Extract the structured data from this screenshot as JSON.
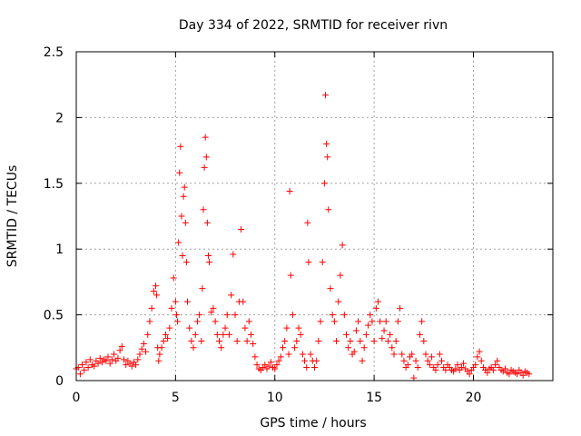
{
  "chart_data": {
    "type": "scatter",
    "title": "Day 334 of 2022, SRMTID for receiver rivn",
    "xlabel": "GPS time / hours",
    "ylabel": "SRMTID / TECUs",
    "xlim": [
      0,
      24
    ],
    "ylim": [
      0,
      2.5
    ],
    "grid": true,
    "marker": "+",
    "color": "#ff0000",
    "xticks": [
      0,
      5,
      10,
      15,
      20
    ],
    "xtick_labels": [
      "0",
      "5",
      "10",
      "15",
      "20"
    ],
    "yticks": [
      0,
      0.5,
      1,
      1.5,
      2,
      2.5
    ],
    "ytick_labels": [
      "0",
      "0.5",
      "1",
      "1.5",
      "2",
      "2.5"
    ],
    "series": [
      {
        "name": "SRMTID",
        "points": [
          [
            0.0,
            0.09
          ],
          [
            0.1,
            0.1
          ],
          [
            0.2,
            0.05
          ],
          [
            0.3,
            0.12
          ],
          [
            0.4,
            0.08
          ],
          [
            0.5,
            0.14
          ],
          [
            0.6,
            0.1
          ],
          [
            0.7,
            0.16
          ],
          [
            0.8,
            0.12
          ],
          [
            0.9,
            0.11
          ],
          [
            1.0,
            0.15
          ],
          [
            1.1,
            0.13
          ],
          [
            1.2,
            0.17
          ],
          [
            1.3,
            0.14
          ],
          [
            1.4,
            0.16
          ],
          [
            1.5,
            0.15
          ],
          [
            1.6,
            0.18
          ],
          [
            1.7,
            0.13
          ],
          [
            1.8,
            0.16
          ],
          [
            1.9,
            0.2
          ],
          [
            2.0,
            0.15
          ],
          [
            2.1,
            0.17
          ],
          [
            2.2,
            0.23
          ],
          [
            2.3,
            0.26
          ],
          [
            2.4,
            0.16
          ],
          [
            2.5,
            0.12
          ],
          [
            2.6,
            0.15
          ],
          [
            2.7,
            0.13
          ],
          [
            2.8,
            0.11
          ],
          [
            2.9,
            0.14
          ],
          [
            3.0,
            0.12
          ],
          [
            3.1,
            0.16
          ],
          [
            3.2,
            0.2
          ],
          [
            3.3,
            0.24
          ],
          [
            3.4,
            0.28
          ],
          [
            3.5,
            0.22
          ],
          [
            3.6,
            0.35
          ],
          [
            3.7,
            0.45
          ],
          [
            3.8,
            0.55
          ],
          [
            3.9,
            0.68
          ],
          [
            4.0,
            0.72
          ],
          [
            4.05,
            0.65
          ],
          [
            4.1,
            0.25
          ],
          [
            4.15,
            0.15
          ],
          [
            4.2,
            0.2
          ],
          [
            4.3,
            0.25
          ],
          [
            4.4,
            0.3
          ],
          [
            4.5,
            0.35
          ],
          [
            4.6,
            0.32
          ],
          [
            4.7,
            0.4
          ],
          [
            4.8,
            0.55
          ],
          [
            4.9,
            0.78
          ],
          [
            5.0,
            0.6
          ],
          [
            5.05,
            0.5
          ],
          [
            5.1,
            0.45
          ],
          [
            5.15,
            1.05
          ],
          [
            5.2,
            1.58
          ],
          [
            5.25,
            1.78
          ],
          [
            5.3,
            1.25
          ],
          [
            5.35,
            0.95
          ],
          [
            5.4,
            1.4
          ],
          [
            5.45,
            1.47
          ],
          [
            5.5,
            1.2
          ],
          [
            5.55,
            0.9
          ],
          [
            5.6,
            0.6
          ],
          [
            5.7,
            0.4
          ],
          [
            5.8,
            0.3
          ],
          [
            5.9,
            0.25
          ],
          [
            6.0,
            0.35
          ],
          [
            6.1,
            0.45
          ],
          [
            6.2,
            0.5
          ],
          [
            6.3,
            0.3
          ],
          [
            6.35,
            0.7
          ],
          [
            6.4,
            1.3
          ],
          [
            6.45,
            1.62
          ],
          [
            6.5,
            1.85
          ],
          [
            6.55,
            1.7
          ],
          [
            6.6,
            1.2
          ],
          [
            6.65,
            0.95
          ],
          [
            6.7,
            0.9
          ],
          [
            6.8,
            0.52
          ],
          [
            6.9,
            0.55
          ],
          [
            7.0,
            0.45
          ],
          [
            7.1,
            0.35
          ],
          [
            7.2,
            0.3
          ],
          [
            7.3,
            0.25
          ],
          [
            7.4,
            0.35
          ],
          [
            7.5,
            0.4
          ],
          [
            7.6,
            0.5
          ],
          [
            7.7,
            0.35
          ],
          [
            7.8,
            0.65
          ],
          [
            7.9,
            0.96
          ],
          [
            8.0,
            0.5
          ],
          [
            8.1,
            0.3
          ],
          [
            8.2,
            0.6
          ],
          [
            8.3,
            1.15
          ],
          [
            8.4,
            0.6
          ],
          [
            8.5,
            0.4
          ],
          [
            8.6,
            0.3
          ],
          [
            8.7,
            0.45
          ],
          [
            8.8,
            0.35
          ],
          [
            8.9,
            0.28
          ],
          [
            9.0,
            0.18
          ],
          [
            9.1,
            0.12
          ],
          [
            9.2,
            0.09
          ],
          [
            9.3,
            0.08
          ],
          [
            9.4,
            0.1
          ],
          [
            9.5,
            0.12
          ],
          [
            9.6,
            0.09
          ],
          [
            9.7,
            0.11
          ],
          [
            9.8,
            0.14
          ],
          [
            9.9,
            0.1
          ],
          [
            10.0,
            0.09
          ],
          [
            10.1,
            0.12
          ],
          [
            10.2,
            0.15
          ],
          [
            10.3,
            0.18
          ],
          [
            10.4,
            0.25
          ],
          [
            10.5,
            0.3
          ],
          [
            10.6,
            0.4
          ],
          [
            10.7,
            0.2
          ],
          [
            10.75,
            1.44
          ],
          [
            10.8,
            0.8
          ],
          [
            10.9,
            0.5
          ],
          [
            11.0,
            0.25
          ],
          [
            11.1,
            0.3
          ],
          [
            11.2,
            0.4
          ],
          [
            11.3,
            0.35
          ],
          [
            11.4,
            0.2
          ],
          [
            11.5,
            0.15
          ],
          [
            11.6,
            0.1
          ],
          [
            11.65,
            1.2
          ],
          [
            11.7,
            0.9
          ],
          [
            11.8,
            0.2
          ],
          [
            11.9,
            0.15
          ],
          [
            12.0,
            0.1
          ],
          [
            12.1,
            0.15
          ],
          [
            12.2,
            0.3
          ],
          [
            12.3,
            0.45
          ],
          [
            12.4,
            0.9
          ],
          [
            12.5,
            1.5
          ],
          [
            12.55,
            2.17
          ],
          [
            12.6,
            1.8
          ],
          [
            12.65,
            1.7
          ],
          [
            12.7,
            1.3
          ],
          [
            12.8,
            0.7
          ],
          [
            12.9,
            0.5
          ],
          [
            13.0,
            0.45
          ],
          [
            13.1,
            0.3
          ],
          [
            13.2,
            0.6
          ],
          [
            13.3,
            0.8
          ],
          [
            13.4,
            1.03
          ],
          [
            13.5,
            0.5
          ],
          [
            13.6,
            0.35
          ],
          [
            13.7,
            0.25
          ],
          [
            13.8,
            0.3
          ],
          [
            13.9,
            0.2
          ],
          [
            14.0,
            0.22
          ],
          [
            14.1,
            0.38
          ],
          [
            14.2,
            0.45
          ],
          [
            14.3,
            0.3
          ],
          [
            14.4,
            0.15
          ],
          [
            14.5,
            0.25
          ],
          [
            14.6,
            0.35
          ],
          [
            14.7,
            0.42
          ],
          [
            14.8,
            0.5
          ],
          [
            14.9,
            0.45
          ],
          [
            15.0,
            0.3
          ],
          [
            15.1,
            0.55
          ],
          [
            15.2,
            0.6
          ],
          [
            15.3,
            0.45
          ],
          [
            15.4,
            0.32
          ],
          [
            15.5,
            0.38
          ],
          [
            15.6,
            0.45
          ],
          [
            15.7,
            0.3
          ],
          [
            15.8,
            0.35
          ],
          [
            15.9,
            0.25
          ],
          [
            16.0,
            0.2
          ],
          [
            16.1,
            0.3
          ],
          [
            16.2,
            0.45
          ],
          [
            16.3,
            0.55
          ],
          [
            16.4,
            0.2
          ],
          [
            16.5,
            0.15
          ],
          [
            16.6,
            0.1
          ],
          [
            16.7,
            0.12
          ],
          [
            16.8,
            0.18
          ],
          [
            16.9,
            0.2
          ],
          [
            17.0,
            0.02
          ],
          [
            17.1,
            0.15
          ],
          [
            17.2,
            0.1
          ],
          [
            17.3,
            0.35
          ],
          [
            17.4,
            0.45
          ],
          [
            17.5,
            0.3
          ],
          [
            17.6,
            0.2
          ],
          [
            17.7,
            0.15
          ],
          [
            17.8,
            0.12
          ],
          [
            17.9,
            0.18
          ],
          [
            18.0,
            0.1
          ],
          [
            18.1,
            0.08
          ],
          [
            18.2,
            0.12
          ],
          [
            18.3,
            0.2
          ],
          [
            18.4,
            0.15
          ],
          [
            18.5,
            0.1
          ],
          [
            18.6,
            0.08
          ],
          [
            18.7,
            0.12
          ],
          [
            18.8,
            0.1
          ],
          [
            18.9,
            0.08
          ],
          [
            19.0,
            0.07
          ],
          [
            19.1,
            0.09
          ],
          [
            19.2,
            0.12
          ],
          [
            19.3,
            0.08
          ],
          [
            19.4,
            0.1
          ],
          [
            19.5,
            0.13
          ],
          [
            19.6,
            0.09
          ],
          [
            19.7,
            0.07
          ],
          [
            19.8,
            0.05
          ],
          [
            19.9,
            0.08
          ],
          [
            20.0,
            0.1
          ],
          [
            20.1,
            0.12
          ],
          [
            20.2,
            0.18
          ],
          [
            20.3,
            0.22
          ],
          [
            20.4,
            0.15
          ],
          [
            20.5,
            0.1
          ],
          [
            20.6,
            0.08
          ],
          [
            20.7,
            0.06
          ],
          [
            20.8,
            0.09
          ],
          [
            20.9,
            0.1
          ],
          [
            21.0,
            0.08
          ],
          [
            21.1,
            0.12
          ],
          [
            21.2,
            0.15
          ],
          [
            21.3,
            0.1
          ],
          [
            21.4,
            0.08
          ],
          [
            21.5,
            0.07
          ],
          [
            21.6,
            0.09
          ],
          [
            21.7,
            0.06
          ],
          [
            21.8,
            0.05
          ],
          [
            21.9,
            0.08
          ],
          [
            22.0,
            0.07
          ],
          [
            22.1,
            0.06
          ],
          [
            22.2,
            0.05
          ],
          [
            22.3,
            0.08
          ],
          [
            22.4,
            0.06
          ],
          [
            22.5,
            0.04
          ],
          [
            22.6,
            0.07
          ],
          [
            22.7,
            0.06
          ],
          [
            22.8,
            0.05
          ]
        ]
      }
    ]
  }
}
